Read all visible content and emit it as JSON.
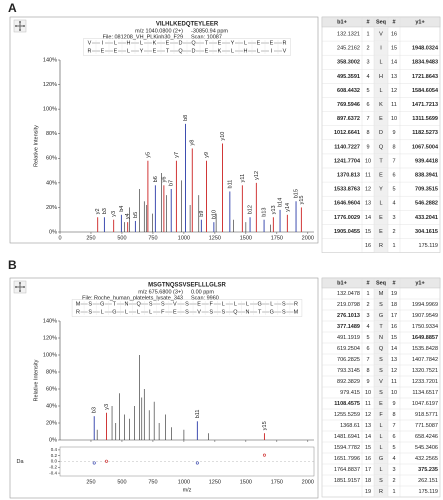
{
  "panel_labels": [
    "A",
    "B"
  ],
  "chart_data": [
    {
      "type": "stem",
      "title": "VILHLKEDQTEYLEER",
      "precursor": "m/z 1040.0800 (2+)",
      "ppm": "-30850.94 ppm",
      "file": "File: 081208_VH_PLKinh30_F29",
      "scan": "Scan: 10087",
      "ylabel": "Relative Intensity",
      "xlim": [
        0,
        2050
      ],
      "ylim": [
        0,
        140
      ],
      "xticks": [
        0,
        250,
        500,
        750,
        1000,
        1250,
        1500,
        1750,
        2000
      ],
      "yticks": [
        {
          "value": 0,
          "label": "0%"
        },
        {
          "value": 20,
          "label": "20%"
        },
        {
          "value": 40,
          "label": "40%"
        },
        {
          "value": 60,
          "label": "60%"
        },
        {
          "value": 80,
          "label": "80%"
        },
        {
          "value": 100,
          "label": "100%"
        },
        {
          "value": 120,
          "label": "120%"
        },
        {
          "value": 140,
          "label": "140%"
        }
      ],
      "series": [
        {
          "color": "#222222",
          "x": [
            520,
            560,
            640,
            680,
            700,
            745,
            820,
            860,
            980,
            1050,
            1120,
            1260,
            1400,
            1500,
            1700
          ],
          "values": [
            8,
            20,
            35,
            25,
            22,
            15,
            48,
            30,
            42,
            22,
            30,
            15,
            10,
            8,
            6
          ]
        },
        {
          "color": "#2a3aa8",
          "x": [
            358.3,
            495.4,
            608.4,
            769.6,
            897.6,
            1012.7,
            1140.7,
            1241.8,
            1370.8,
            1533.9,
            1647.0,
            1776.0,
            1905.0
          ],
          "values": [
            12,
            14,
            9,
            38,
            35,
            88,
            10,
            8,
            33,
            12,
            10,
            18,
            25
          ],
          "labels": [
            "b3",
            "b4",
            "b5",
            "b6",
            "b7",
            "b8",
            "b9",
            "b10",
            "b11",
            "b12",
            "b13",
            "b14",
            "b15"
          ]
        },
        {
          "color": "#cc2222",
          "x": [
            304.2,
            433.2,
            546.3,
            709.4,
            838.4,
            939.4,
            1067.5,
            1182.5,
            1311.6,
            1471.7,
            1584.6,
            1721.9,
            1834.9,
            1948.0
          ],
          "values": [
            12,
            10,
            8,
            58,
            38,
            58,
            68,
            58,
            72,
            38,
            40,
            12,
            14,
            20
          ],
          "labels": [
            "y2",
            "y3",
            "y4",
            "y5",
            "y6",
            "y7",
            "y8",
            "y9",
            "y10",
            "y11",
            "y12",
            "y13",
            "y14",
            "y15"
          ]
        }
      ]
    },
    {
      "type": "stem",
      "title": "MSGTNQSSVSEFLLLGLSR",
      "precursor": "m/z 675.6800 (3+)",
      "ppm": "0.00 ppm",
      "file": "File: Roche_human_platelets_lysate_343",
      "scan": "Scan: 9960",
      "ylabel": "Relative Intensity",
      "xlabel": "m/z",
      "xlim": [
        0,
        2050
      ],
      "ylim": [
        0,
        140
      ],
      "xticks": [
        250,
        500,
        750,
        1000,
        1250,
        1500,
        1750,
        2000
      ],
      "yticks": [
        {
          "value": 0,
          "label": "0%"
        },
        {
          "value": 20,
          "label": "20%"
        },
        {
          "value": 40,
          "label": "40%"
        },
        {
          "value": 60,
          "label": "60%"
        },
        {
          "value": 80,
          "label": "80%"
        },
        {
          "value": 100,
          "label": "100%"
        },
        {
          "value": 120,
          "label": "120%"
        },
        {
          "value": 140,
          "label": "140%"
        }
      ],
      "series": [
        {
          "color": "#222222",
          "x": [
            300,
            420,
            450,
            480,
            520,
            560,
            600,
            640,
            660,
            680,
            720,
            760,
            800,
            850,
            900,
            1000,
            1200
          ],
          "values": [
            12,
            40,
            20,
            55,
            30,
            25,
            40,
            100,
            50,
            60,
            35,
            45,
            20,
            30,
            15,
            12,
            8
          ]
        },
        {
          "color": "#2a3aa8",
          "x": [
            276.1,
            1108.5
          ],
          "values": [
            28,
            22
          ],
          "labels": [
            "b3",
            "b11"
          ]
        },
        {
          "color": "#cc2222",
          "x": [
            375.2,
            1649.9
          ],
          "values": [
            32,
            8
          ],
          "labels": [
            "y3",
            "y15"
          ]
        }
      ],
      "error_plot": {
        "ylabel": "Da",
        "ylim": [
          -0.5,
          0.5
        ],
        "yticks": [
          0.4,
          0.2,
          {
            "value": 0,
            "label": "0.0"
          },
          -0.2,
          -0.4
        ],
        "series": [
          {
            "color": "#2a3aa8",
            "x": [
              276.1,
              1108.5
            ],
            "values": [
              -0.05,
              -0.05
            ]
          },
          {
            "color": "#cc2222",
            "x": [
              375.2,
              1649.9
            ],
            "values": [
              0.01,
              0.22
            ]
          }
        ]
      }
    }
  ],
  "tables": [
    {
      "header": [
        "b1+",
        "#",
        "Seq",
        "#",
        "y1+"
      ],
      "rows": [
        [
          132.1321,
          1,
          "V",
          16,
          null
        ],
        [
          245.2162,
          2,
          "I",
          15,
          1948.0324
        ],
        [
          358.3002,
          3,
          "L",
          14,
          1834.9483
        ],
        [
          495.3591,
          4,
          "H",
          13,
          1721.8643
        ],
        [
          608.4432,
          5,
          "L",
          12,
          1584.6054
        ],
        [
          769.5946,
          6,
          "K",
          11,
          1471.7213
        ],
        [
          897.6372,
          7,
          "E",
          10,
          1311.5699
        ],
        [
          1012.6641,
          8,
          "D",
          9,
          1182.5273
        ],
        [
          1140.7227,
          9,
          "Q",
          8,
          1067.5004
        ],
        [
          1241.7704,
          10,
          "T",
          7,
          939.4418
        ],
        [
          1370.813,
          11,
          "E",
          6,
          838.3941
        ],
        [
          1533.8763,
          12,
          "Y",
          5,
          709.3515
        ],
        [
          1646.9604,
          13,
          "L",
          4,
          546.2882
        ],
        [
          1776.0029,
          14,
          "E",
          3,
          433.2041
        ],
        [
          1905.0455,
          15,
          "E",
          2,
          304.1615
        ],
        [
          null,
          16,
          "R",
          1,
          175.119
        ]
      ],
      "b_colors": [
        null,
        null,
        "#2a3aa8",
        "#2a3aa8",
        "#2a3aa8",
        "#2a3aa8",
        "#2a3aa8",
        "#2a3aa8",
        "#2a3aa8",
        "#2a3aa8",
        "#2a3aa8",
        "#2a3aa8",
        "#2a3aa8",
        "#2a3aa8",
        "#2a3aa8",
        null
      ],
      "y_colors": [
        null,
        "#cc2222",
        "#cc2222",
        "#cc2222",
        "#cc2222",
        "#cc2222",
        "#cc2222",
        "#cc2222",
        "#cc2222",
        "#cc2222",
        "#cc2222",
        "#cc2222",
        "#cc2222",
        "#cc2222",
        "#cc2222",
        null
      ]
    },
    {
      "header": [
        "b1+",
        "#",
        "Seq",
        "#",
        "y1+"
      ],
      "rows": [
        [
          132.0478,
          1,
          "M",
          19,
          null
        ],
        [
          219.0798,
          2,
          "S",
          18,
          1994.9969
        ],
        [
          276.1013,
          3,
          "G",
          17,
          1907.9549
        ],
        [
          377.1489,
          4,
          "T",
          16,
          1750.9334
        ],
        [
          491.1919,
          5,
          "N",
          15,
          1649.8857
        ],
        [
          619.2504,
          6,
          "Q",
          14,
          1535.8428
        ],
        [
          706.2825,
          7,
          "S",
          13,
          1407.7842
        ],
        [
          793.3145,
          8,
          "S",
          12,
          1320.7521
        ],
        [
          892.3829,
          9,
          "V",
          11,
          1233.7201
        ],
        [
          979.415,
          10,
          "S",
          10,
          1134.6517
        ],
        [
          1108.4575,
          11,
          "E",
          9,
          1047.6197
        ],
        [
          1255.5259,
          12,
          "F",
          8,
          918.5771
        ],
        [
          1368.61,
          13,
          "L",
          7,
          771.5087
        ],
        [
          1481.6941,
          14,
          "L",
          6,
          658.4246
        ],
        [
          1594.7782,
          15,
          "L",
          5,
          545.3406
        ],
        [
          1651.7996,
          16,
          "G",
          4,
          432.2565
        ],
        [
          1764.8837,
          17,
          "L",
          3,
          375.235
        ],
        [
          1851.9157,
          18,
          "S",
          2,
          262.151
        ],
        [
          null,
          19,
          "R",
          1,
          175.119
        ]
      ],
      "b_colors": [
        null,
        null,
        "#2a3aa8",
        "#2a3aa8",
        null,
        null,
        null,
        null,
        null,
        null,
        "#2a3aa8",
        null,
        null,
        null,
        null,
        null,
        null,
        null,
        null
      ],
      "y_colors": [
        null,
        null,
        null,
        null,
        "#cc2222",
        null,
        null,
        null,
        null,
        null,
        null,
        null,
        null,
        null,
        null,
        null,
        "#cc2222",
        null,
        null
      ]
    }
  ]
}
